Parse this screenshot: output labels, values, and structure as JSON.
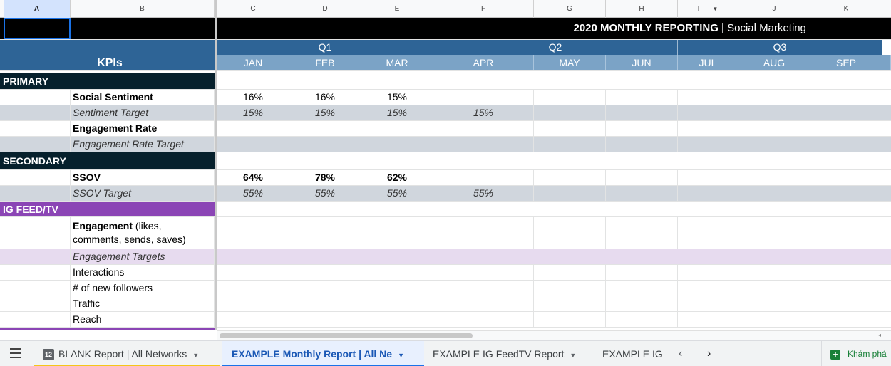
{
  "column_headers": [
    "A",
    "B",
    "C",
    "D",
    "E",
    "F",
    "G",
    "H",
    "I",
    "J",
    "K"
  ],
  "title": {
    "bold": "2020 MONTHLY REPORTING",
    "rest": " | Social Marketing"
  },
  "kpis_label": "KPIs",
  "quarters": [
    "Q1",
    "Q2",
    "Q3"
  ],
  "months": [
    "JAN",
    "FEB",
    "MAR",
    "APR",
    "MAY",
    "JUN",
    "JUL",
    "AUG",
    "SEP"
  ],
  "sections": {
    "primary": "PRIMARY",
    "secondary": "SECONDARY",
    "igfeed": "IG FEED/TV"
  },
  "rows": {
    "social_sentiment": {
      "label": "Social Sentiment",
      "values": [
        "16%",
        "16%",
        "15%"
      ]
    },
    "sentiment_target": {
      "label": "Sentiment Target",
      "values": [
        "15%",
        "15%",
        "15%",
        "15%"
      ]
    },
    "engagement_rate": {
      "label": "Engagement Rate"
    },
    "engagement_rate_target": {
      "label": "Engagement Rate Target"
    },
    "ssov": {
      "label": "SSOV",
      "values": [
        "64%",
        "78%",
        "62%"
      ]
    },
    "ssov_target": {
      "label": "SSOV Target",
      "values": [
        "55%",
        "55%",
        "55%",
        "55%"
      ]
    },
    "engagement": {
      "label_bold": "Engagement",
      "label_rest1": " (likes,",
      "label_rest2": "comments, sends, saves)"
    },
    "engagement_targets": {
      "label": "Engagement Targets"
    },
    "interactions": {
      "label": "Interactions"
    },
    "new_followers": {
      "label": "# of new followers"
    },
    "traffic": {
      "label": "Traffic"
    },
    "reach": {
      "label": "Reach"
    }
  },
  "tabs": [
    {
      "badge": "12",
      "label": "BLANK Report | All Networks"
    },
    {
      "label": "EXAMPLE Monthly Report | All Ne"
    },
    {
      "label": "EXAMPLE IG FeedTV Report"
    },
    {
      "label": "EXAMPLE IG"
    }
  ],
  "explore_label": "Khám phá",
  "colors": {
    "header_black": "#000000",
    "header_blue": "#2e6496",
    "month_blue": "#7ba3c6",
    "section_dark": "#06202c",
    "target_gray": "#d0d6dd",
    "purple": "#8b45b5",
    "lilac": "#e7dbef",
    "active_tab": "#1a58b5"
  }
}
